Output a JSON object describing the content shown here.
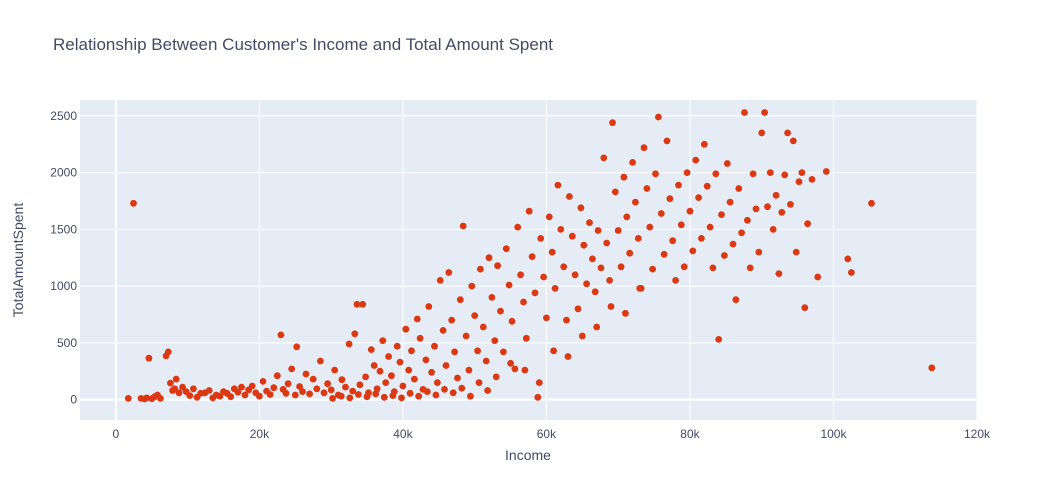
{
  "chart_data": {
    "type": "scatter",
    "title": "Relationship Between Customer's Income and Total Amount Spent",
    "xlabel": "Income",
    "ylabel": "TotalAmountSpent",
    "xlim": [
      -5000,
      120000
    ],
    "ylim": [
      -180,
      2640
    ],
    "x_ticks": [
      0,
      20000,
      40000,
      60000,
      80000,
      100000,
      120000
    ],
    "x_tick_labels": [
      "0",
      "20k",
      "40k",
      "60k",
      "80k",
      "100k",
      "120k"
    ],
    "y_ticks": [
      0,
      500,
      1000,
      1500,
      2000,
      2500
    ],
    "y_tick_labels": [
      "0",
      "500",
      "1000",
      "1500",
      "2000",
      "2500"
    ],
    "grid": true,
    "colors": {
      "marker": "#dc3912",
      "plot_bg": "#e5ecf6",
      "grid": "#ffffff"
    },
    "points": [
      [
        1730,
        10
      ],
      [
        2450,
        1730
      ],
      [
        3500,
        10
      ],
      [
        4000,
        5
      ],
      [
        4300,
        15
      ],
      [
        4600,
        365
      ],
      [
        5000,
        8
      ],
      [
        5400,
        25
      ],
      [
        5800,
        40
      ],
      [
        6200,
        10
      ],
      [
        7000,
        385
      ],
      [
        7300,
        420
      ],
      [
        7600,
        145
      ],
      [
        7900,
        80
      ],
      [
        8200,
        95
      ],
      [
        8400,
        180
      ],
      [
        8800,
        60
      ],
      [
        9300,
        110
      ],
      [
        9800,
        70
      ],
      [
        10300,
        35
      ],
      [
        10800,
        95
      ],
      [
        11300,
        20
      ],
      [
        11800,
        55
      ],
      [
        12400,
        60
      ],
      [
        13000,
        80
      ],
      [
        13500,
        15
      ],
      [
        14000,
        40
      ],
      [
        14500,
        30
      ],
      [
        15000,
        70
      ],
      [
        15500,
        55
      ],
      [
        16000,
        25
      ],
      [
        16500,
        95
      ],
      [
        17000,
        65
      ],
      [
        17500,
        110
      ],
      [
        18000,
        40
      ],
      [
        18500,
        85
      ],
      [
        19000,
        120
      ],
      [
        19500,
        60
      ],
      [
        20000,
        30
      ],
      [
        20500,
        160
      ],
      [
        21000,
        75
      ],
      [
        21500,
        45
      ],
      [
        22000,
        105
      ],
      [
        22500,
        210
      ],
      [
        23000,
        570
      ],
      [
        23300,
        90
      ],
      [
        23700,
        55
      ],
      [
        24000,
        140
      ],
      [
        24500,
        270
      ],
      [
        25000,
        40
      ],
      [
        25200,
        465
      ],
      [
        25600,
        115
      ],
      [
        26000,
        70
      ],
      [
        26500,
        225
      ],
      [
        27000,
        50
      ],
      [
        27500,
        180
      ],
      [
        28000,
        95
      ],
      [
        28500,
        340
      ],
      [
        29000,
        60
      ],
      [
        29500,
        140
      ],
      [
        30000,
        85
      ],
      [
        30500,
        260
      ],
      [
        31000,
        40
      ],
      [
        31500,
        175
      ],
      [
        32000,
        110
      ],
      [
        32500,
        490
      ],
      [
        33000,
        75
      ],
      [
        33300,
        580
      ],
      [
        33600,
        840
      ],
      [
        34000,
        130
      ],
      [
        34400,
        840
      ],
      [
        34800,
        200
      ],
      [
        35200,
        60
      ],
      [
        35600,
        440
      ],
      [
        36000,
        300
      ],
      [
        36400,
        95
      ],
      [
        36800,
        250
      ],
      [
        37200,
        520
      ],
      [
        37600,
        150
      ],
      [
        38000,
        380
      ],
      [
        38400,
        210
      ],
      [
        38800,
        70
      ],
      [
        39200,
        470
      ],
      [
        39600,
        330
      ],
      [
        40000,
        120
      ],
      [
        40400,
        620
      ],
      [
        40800,
        260
      ],
      [
        41200,
        430
      ],
      [
        41600,
        180
      ],
      [
        42000,
        710
      ],
      [
        42400,
        540
      ],
      [
        42800,
        90
      ],
      [
        43200,
        350
      ],
      [
        43600,
        820
      ],
      [
        44000,
        240
      ],
      [
        44400,
        470
      ],
      [
        44800,
        150
      ],
      [
        45200,
        1050
      ],
      [
        45600,
        610
      ],
      [
        46000,
        300
      ],
      [
        46400,
        1120
      ],
      [
        46800,
        700
      ],
      [
        47200,
        420
      ],
      [
        47600,
        190
      ],
      [
        48000,
        880
      ],
      [
        48400,
        1530
      ],
      [
        48800,
        560
      ],
      [
        49200,
        260
      ],
      [
        49600,
        1000
      ],
      [
        50000,
        740
      ],
      [
        50400,
        430
      ],
      [
        50800,
        1150
      ],
      [
        51200,
        640
      ],
      [
        51600,
        340
      ],
      [
        52000,
        1250
      ],
      [
        52400,
        900
      ],
      [
        52800,
        520
      ],
      [
        53200,
        1180
      ],
      [
        53600,
        780
      ],
      [
        54000,
        420
      ],
      [
        54400,
        1330
      ],
      [
        54800,
        1010
      ],
      [
        55200,
        690
      ],
      [
        55600,
        270
      ],
      [
        56000,
        1520
      ],
      [
        56400,
        1100
      ],
      [
        56800,
        860
      ],
      [
        57200,
        540
      ],
      [
        57600,
        1660
      ],
      [
        58000,
        1260
      ],
      [
        58400,
        940
      ],
      [
        58800,
        20
      ],
      [
        59200,
        1420
      ],
      [
        59600,
        1080
      ],
      [
        60000,
        720
      ],
      [
        60400,
        1610
      ],
      [
        60800,
        1300
      ],
      [
        61200,
        980
      ],
      [
        61600,
        1890
      ],
      [
        62000,
        1500
      ],
      [
        62400,
        1170
      ],
      [
        62800,
        700
      ],
      [
        63200,
        1790
      ],
      [
        63600,
        1440
      ],
      [
        64000,
        1100
      ],
      [
        64400,
        800
      ],
      [
        64800,
        1690
      ],
      [
        65200,
        1360
      ],
      [
        65600,
        1020
      ],
      [
        66000,
        1560
      ],
      [
        66400,
        1240
      ],
      [
        66800,
        950
      ],
      [
        67200,
        1490
      ],
      [
        67600,
        1160
      ],
      [
        68000,
        2130
      ],
      [
        68400,
        1380
      ],
      [
        68800,
        1050
      ],
      [
        69200,
        2440
      ],
      [
        69600,
        1830
      ],
      [
        70000,
        1490
      ],
      [
        70400,
        1170
      ],
      [
        70800,
        1960
      ],
      [
        71200,
        1610
      ],
      [
        71600,
        1290
      ],
      [
        72000,
        2090
      ],
      [
        72400,
        1740
      ],
      [
        72800,
        1420
      ],
      [
        73200,
        980
      ],
      [
        73600,
        2220
      ],
      [
        74000,
        1860
      ],
      [
        74400,
        1520
      ],
      [
        74800,
        1150
      ],
      [
        75200,
        1990
      ],
      [
        75600,
        2490
      ],
      [
        76000,
        1640
      ],
      [
        76400,
        1280
      ],
      [
        76800,
        2280
      ],
      [
        77200,
        1770
      ],
      [
        77600,
        1400
      ],
      [
        78000,
        1050
      ],
      [
        78400,
        1890
      ],
      [
        78800,
        1540
      ],
      [
        79200,
        1170
      ],
      [
        79600,
        2000
      ],
      [
        80000,
        1660
      ],
      [
        80400,
        1310
      ],
      [
        80800,
        2110
      ],
      [
        81200,
        1780
      ],
      [
        81600,
        1420
      ],
      [
        82000,
        2250
      ],
      [
        82400,
        1880
      ],
      [
        82800,
        1520
      ],
      [
        83200,
        1160
      ],
      [
        83600,
        1990
      ],
      [
        84000,
        530
      ],
      [
        84400,
        1630
      ],
      [
        84800,
        1270
      ],
      [
        85200,
        2080
      ],
      [
        85600,
        1740
      ],
      [
        86000,
        1370
      ],
      [
        86400,
        880
      ],
      [
        86800,
        1860
      ],
      [
        87200,
        1470
      ],
      [
        87600,
        2530
      ],
      [
        88000,
        1580
      ],
      [
        88400,
        1160
      ],
      [
        88800,
        1990
      ],
      [
        89200,
        1680
      ],
      [
        89600,
        1300
      ],
      [
        90000,
        2350
      ],
      [
        90400,
        2530
      ],
      [
        90800,
        1700
      ],
      [
        91200,
        2000
      ],
      [
        91600,
        1500
      ],
      [
        92000,
        1800
      ],
      [
        92400,
        1110
      ],
      [
        92800,
        1650
      ],
      [
        93200,
        1980
      ],
      [
        93600,
        2350
      ],
      [
        94000,
        1720
      ],
      [
        94400,
        2280
      ],
      [
        94800,
        1300
      ],
      [
        95200,
        1920
      ],
      [
        95600,
        2000
      ],
      [
        96000,
        810
      ],
      [
        96400,
        1550
      ],
      [
        97000,
        1940
      ],
      [
        97800,
        1080
      ],
      [
        99000,
        2010
      ],
      [
        102000,
        1240
      ],
      [
        102500,
        1120
      ],
      [
        105300,
        1730
      ],
      [
        113700,
        280
      ],
      [
        30200,
        10
      ],
      [
        31400,
        30
      ],
      [
        32600,
        15
      ],
      [
        33800,
        45
      ],
      [
        35000,
        25
      ],
      [
        36200,
        50
      ],
      [
        37400,
        20
      ],
      [
        38600,
        35
      ],
      [
        39800,
        15
      ],
      [
        41000,
        55
      ],
      [
        42200,
        30
      ],
      [
        43400,
        70
      ],
      [
        44600,
        40
      ],
      [
        45800,
        90
      ],
      [
        47000,
        60
      ],
      [
        48200,
        100
      ],
      [
        49400,
        30
      ],
      [
        50600,
        150
      ],
      [
        51800,
        80
      ],
      [
        53000,
        200
      ],
      [
        55000,
        320
      ],
      [
        57000,
        260
      ],
      [
        59000,
        150
      ],
      [
        61000,
        430
      ],
      [
        63000,
        380
      ],
      [
        65000,
        560
      ],
      [
        67000,
        640
      ],
      [
        69000,
        820
      ],
      [
        71000,
        760
      ],
      [
        73000,
        980
      ]
    ]
  }
}
